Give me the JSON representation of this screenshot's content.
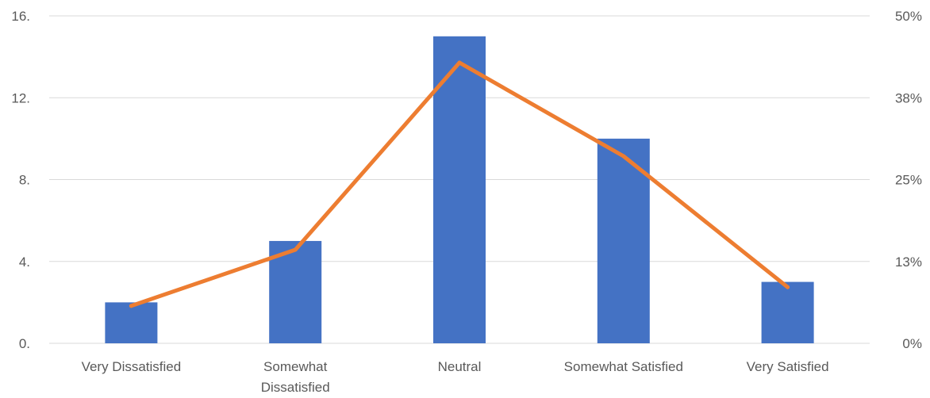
{
  "chart_data": {
    "type": "bar",
    "categories": [
      "Very Dissatisfied",
      "Somewhat Dissatisfied",
      "Neutral",
      "Somewhat Satisfied",
      "Very Satisfied"
    ],
    "category_lines": [
      [
        "Very Dissatisfied"
      ],
      [
        "Somewhat",
        "Dissatisfied"
      ],
      [
        "Neutral"
      ],
      [
        "Somewhat Satisfied"
      ],
      [
        "Very Satisfied"
      ]
    ],
    "series": [
      {
        "type": "bar",
        "axis": "left",
        "values": [
          2,
          5,
          15,
          10,
          3
        ],
        "color": "#4472C4"
      },
      {
        "type": "line",
        "axis": "right",
        "values": [
          0.0571,
          0.1429,
          0.4286,
          0.2857,
          0.0857
        ],
        "color": "#ED7D31"
      }
    ],
    "ylim_left": [
      0,
      16
    ],
    "yticks_left": [
      "0.",
      "4.",
      "8.",
      "12.",
      "16."
    ],
    "ylim_right": [
      0,
      0.5
    ],
    "yticks_right": [
      "0%",
      "13%",
      "25%",
      "38%",
      "50%"
    ],
    "grid": true,
    "title": "",
    "xlabel": "",
    "ylabel": ""
  }
}
